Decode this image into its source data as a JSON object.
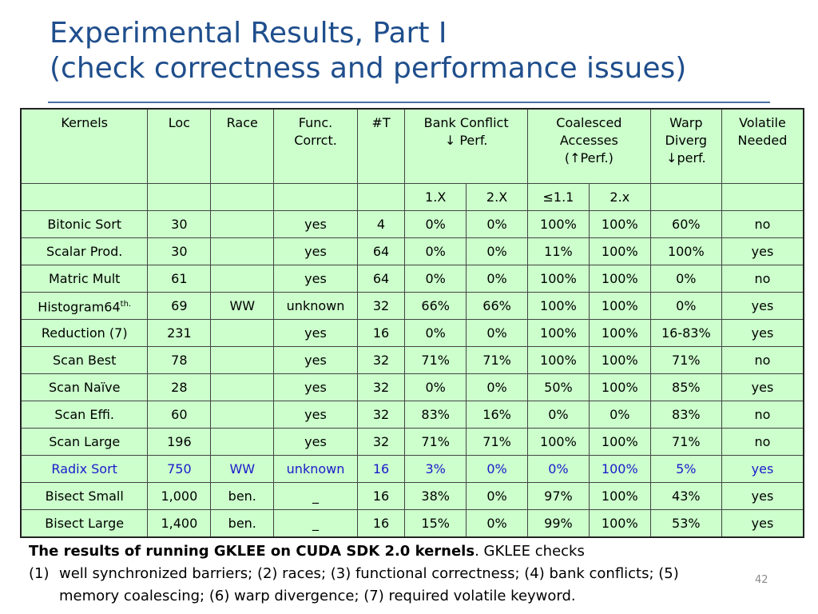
{
  "title": {
    "line1": "Experimental Results, Part I",
    "line2": "(check correctness and performance issues)"
  },
  "table": {
    "header": {
      "kernels": "Kernels",
      "loc": "Loc",
      "race": "Race",
      "func_line1": "Func.",
      "func_line2": "Corrct.",
      "threads": "#T",
      "bank_line1": "Bank Conflict",
      "bank_arrow": "↓",
      "bank_line2": " Perf.",
      "coal_line1": "Coalesced",
      "coal_line2": "Accesses",
      "coal_paren_open": "(",
      "coal_arrow": "↑",
      "coal_line3": "Perf.)",
      "warp_line1": "Warp",
      "warp_line2": "Diverg",
      "warp_arrow": "↓",
      "warp_line3": "perf.",
      "volatile_line1": "Volatile",
      "volatile_line2": "Needed"
    },
    "subheader": {
      "bank_1x": "1.X",
      "bank_2x": "2.X",
      "coal_le11": "≤1.1",
      "coal_2x": "2.x"
    },
    "rows": [
      {
        "name": "Bitonic Sort",
        "sup": "",
        "loc": "30",
        "race": "",
        "func": "yes",
        "threads": "4",
        "bank1": "0%",
        "bank2": "0%",
        "coal1": "100%",
        "coal2": "100%",
        "warp": "60%",
        "volatile": "no"
      },
      {
        "name": "Scalar Prod.",
        "sup": "",
        "loc": "30",
        "race": "",
        "func": "yes",
        "threads": "64",
        "bank1": "0%",
        "bank2": "0%",
        "coal1": "11%",
        "coal2": "100%",
        "warp": "100%",
        "volatile": "yes"
      },
      {
        "name": "Matric Mult",
        "sup": "",
        "loc": "61",
        "race": "",
        "func": "yes",
        "threads": "64",
        "bank1": "0%",
        "bank2": "0%",
        "coal1": "100%",
        "coal2": "100%",
        "warp": "0%",
        "volatile": "no"
      },
      {
        "name": "Histogram64",
        "sup": "th.",
        "loc": "69",
        "race": "WW",
        "func": "unknown",
        "threads": "32",
        "bank1": "66%",
        "bank2": "66%",
        "coal1": "100%",
        "coal2": "100%",
        "warp": "0%",
        "volatile": "yes"
      },
      {
        "name": "Reduction (7)",
        "sup": "",
        "loc": "231",
        "race": "",
        "func": "yes",
        "threads": "16",
        "bank1": "0%",
        "bank2": "0%",
        "coal1": "100%",
        "coal2": "100%",
        "warp": "16-83%",
        "volatile": "yes"
      },
      {
        "name": "Scan Best",
        "sup": "",
        "loc": "78",
        "race": "",
        "func": "yes",
        "threads": "32",
        "bank1": "71%",
        "bank2": "71%",
        "coal1": "100%",
        "coal2": "100%",
        "warp": "71%",
        "volatile": "no"
      },
      {
        "name": "Scan Naïve",
        "sup": "",
        "loc": "28",
        "race": "",
        "func": "yes",
        "threads": "32",
        "bank1": "0%",
        "bank2": "0%",
        "coal1": "50%",
        "coal2": "100%",
        "warp": "85%",
        "volatile": "yes"
      },
      {
        "name": "Scan Effi.",
        "sup": "",
        "loc": "60",
        "race": "",
        "func": "yes",
        "threads": "32",
        "bank1": "83%",
        "bank2": "16%",
        "coal1": "0%",
        "coal2": "0%",
        "warp": "83%",
        "volatile": "no"
      },
      {
        "name": "Scan Large",
        "sup": "",
        "loc": "196",
        "race": "",
        "func": "yes",
        "threads": "32",
        "bank1": "71%",
        "bank2": "71%",
        "coal1": "100%",
        "coal2": "100%",
        "warp": "71%",
        "volatile": "no"
      },
      {
        "name": "Radix Sort",
        "sup": "",
        "loc": "750",
        "race": "WW",
        "func": "unknown",
        "threads": "16",
        "bank1": "3%",
        "bank2": "0%",
        "coal1": "0%",
        "coal2": "100%",
        "warp": "5%",
        "volatile": "yes",
        "highlight": true
      },
      {
        "name": "Bisect Small",
        "sup": "",
        "loc": "1,000",
        "race": "ben.",
        "func": "_",
        "threads": "16",
        "bank1": "38%",
        "bank2": "0%",
        "coal1": "97%",
        "coal2": "100%",
        "warp": "43%",
        "volatile": "yes"
      },
      {
        "name": "Bisect Large",
        "sup": "",
        "loc": "1,400",
        "race": "ben.",
        "func": "_",
        "threads": "16",
        "bank1": "15%",
        "bank2": "0%",
        "coal1": "99%",
        "coal2": "100%",
        "warp": "53%",
        "volatile": "yes"
      }
    ]
  },
  "caption": {
    "bold": "The results of running GKLEE on CUDA SDK 2.0 kernels",
    "rest": ". GKLEE checks",
    "item_num": "(1)",
    "item_line1": "well synchronized barriers; (2) races; (3) functional correctness; (4) bank conflicts; (5)",
    "item_line2": "memory coalescing; (6) warp divergence;  (7) required volatile keyword."
  },
  "page_number": "42",
  "colors": {
    "title": "#1f4e8c",
    "table_bg": "#ccffcc",
    "highlight_row": "#1a1acc"
  }
}
